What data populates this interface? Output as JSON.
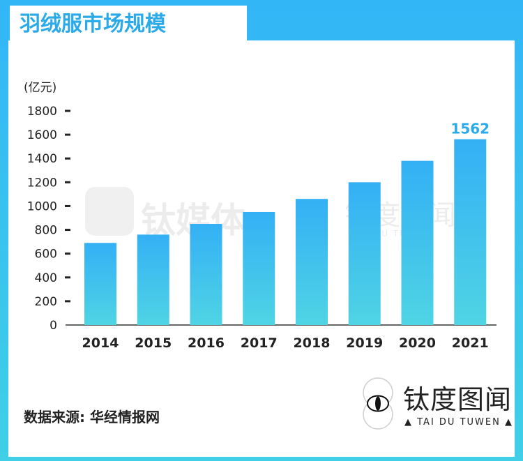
{
  "header": {
    "title": "羽绒服市场规模"
  },
  "source": {
    "text": "数据来源: 华经情报网"
  },
  "logo": {
    "name_cn": "钛度图闻",
    "name_en": "▲ TAI DU TUWEN ▲"
  },
  "watermarks": [
    {
      "text": "钛媒体"
    },
    {
      "text": "钛度图闻"
    },
    {
      "text": "TAI DU TUWEN"
    }
  ],
  "colors": {
    "frame": "#33b6f6",
    "bar_top": "#33b0f5",
    "bar_bottom": "#4fd4e4",
    "highlight_label": "#2aaae9",
    "text": "#222222"
  },
  "chart_data": {
    "type": "bar",
    "title": "",
    "xlabel": "",
    "ylabel": "(亿元)",
    "categories": [
      "2014",
      "2015",
      "2016",
      "2017",
      "2018",
      "2019",
      "2020",
      "2021"
    ],
    "values": [
      690,
      760,
      850,
      950,
      1060,
      1200,
      1380,
      1562
    ],
    "ylim": [
      0,
      1800
    ],
    "yticks": [
      0,
      200,
      400,
      600,
      800,
      1000,
      1200,
      1400,
      1600,
      1800
    ],
    "data_labels": [
      {
        "category": "2021",
        "text": "1562"
      }
    ],
    "grid": false,
    "legend": "none"
  }
}
